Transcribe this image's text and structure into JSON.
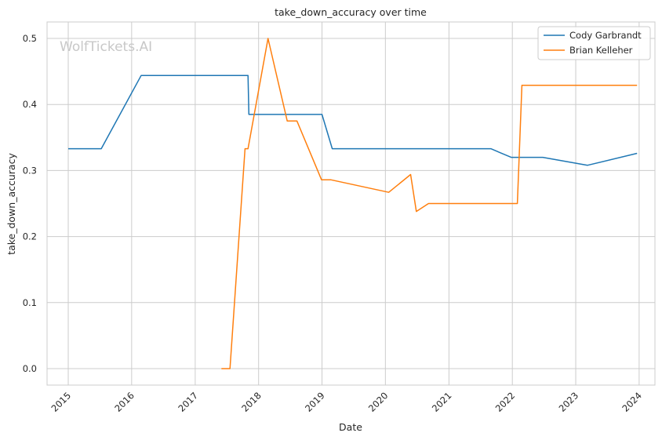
{
  "chart_data": {
    "type": "line",
    "title": "take_down_accuracy over time",
    "xlabel": "Date",
    "ylabel": "take_down_accuracy",
    "watermark": "WolfTickets.AI",
    "x_ticks": [
      "2015",
      "2016",
      "2017",
      "2018",
      "2019",
      "2020",
      "2021",
      "2022",
      "2023",
      "2024"
    ],
    "y_ticks": [
      "0.0",
      "0.1",
      "0.2",
      "0.3",
      "0.4",
      "0.5"
    ],
    "xlim": [
      "2014-09-01",
      "2024-04-01"
    ],
    "ylim": [
      -0.025,
      0.525
    ],
    "grid": true,
    "legend_position": "top-right",
    "series": [
      {
        "name": "Cody Garbrandt",
        "color": "#1f77b4",
        "points": [
          [
            "2015-01-01",
            0.333
          ],
          [
            "2015-07-10",
            0.333
          ],
          [
            "2016-02-25",
            0.444
          ],
          [
            "2017-11-01",
            0.444
          ],
          [
            "2017-11-06",
            0.385
          ],
          [
            "2019-01-01",
            0.385
          ],
          [
            "2019-03-01",
            0.333
          ],
          [
            "2021-08-30",
            0.333
          ],
          [
            "2021-12-25",
            0.32
          ],
          [
            "2022-06-25",
            0.32
          ],
          [
            "2023-03-10",
            0.308
          ],
          [
            "2023-12-20",
            0.326
          ]
        ]
      },
      {
        "name": "Brian Kelleher",
        "color": "#ff7f0e",
        "points": [
          [
            "2017-06-01",
            0.0
          ],
          [
            "2017-07-20",
            0.0
          ],
          [
            "2017-10-15",
            0.333
          ],
          [
            "2017-11-01",
            0.333
          ],
          [
            "2018-02-24",
            0.5
          ],
          [
            "2018-06-15",
            0.375
          ],
          [
            "2018-08-10",
            0.375
          ],
          [
            "2018-12-29",
            0.286
          ],
          [
            "2019-02-20",
            0.286
          ],
          [
            "2020-01-20",
            0.267
          ],
          [
            "2020-05-25",
            0.294
          ],
          [
            "2020-06-27",
            0.238
          ],
          [
            "2020-09-05",
            0.25
          ],
          [
            "2022-01-30",
            0.25
          ],
          [
            "2022-02-25",
            0.429
          ],
          [
            "2023-12-20",
            0.429
          ]
        ]
      }
    ]
  }
}
